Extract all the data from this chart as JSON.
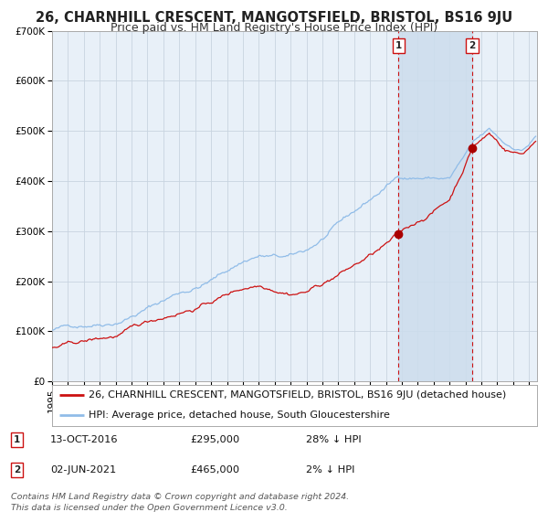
{
  "title": "26, CHARNHILL CRESCENT, MANGOTSFIELD, BRISTOL, BS16 9JU",
  "subtitle": "Price paid vs. HM Land Registry's House Price Index (HPI)",
  "ylim": [
    0,
    700000
  ],
  "yticks": [
    0,
    100000,
    200000,
    300000,
    400000,
    500000,
    600000,
    700000
  ],
  "ytick_labels": [
    "£0",
    "£100K",
    "£200K",
    "£300K",
    "£400K",
    "£500K",
    "£600K",
    "£700K"
  ],
  "xlim_start": 1995.0,
  "xlim_end": 2025.5,
  "background_color": "#ffffff",
  "plot_bg_color": "#e8f0f8",
  "grid_color": "#c8d4e0",
  "hpi_color": "#90bce8",
  "price_color": "#cc1111",
  "shade_color": "#ccdded",
  "point1_date_num": 2016.79,
  "point1_price": 295000,
  "point1_label": "1",
  "point1_date_str": "13-OCT-2016",
  "point1_pct": "28% ↓ HPI",
  "point2_date_num": 2021.42,
  "point2_price": 465000,
  "point2_label": "2",
  "point2_date_str": "02-JUN-2021",
  "point2_pct": "2% ↓ HPI",
  "legend_line1": "26, CHARNHILL CRESCENT, MANGOTSFIELD, BRISTOL, BS16 9JU (detached house)",
  "legend_line2": "HPI: Average price, detached house, South Gloucestershire",
  "footer": "Contains HM Land Registry data © Crown copyright and database right 2024.\nThis data is licensed under the Open Government Licence v3.0.",
  "title_fontsize": 10.5,
  "subtitle_fontsize": 9,
  "tick_fontsize": 7.5,
  "legend_fontsize": 8,
  "footer_fontsize": 6.8
}
